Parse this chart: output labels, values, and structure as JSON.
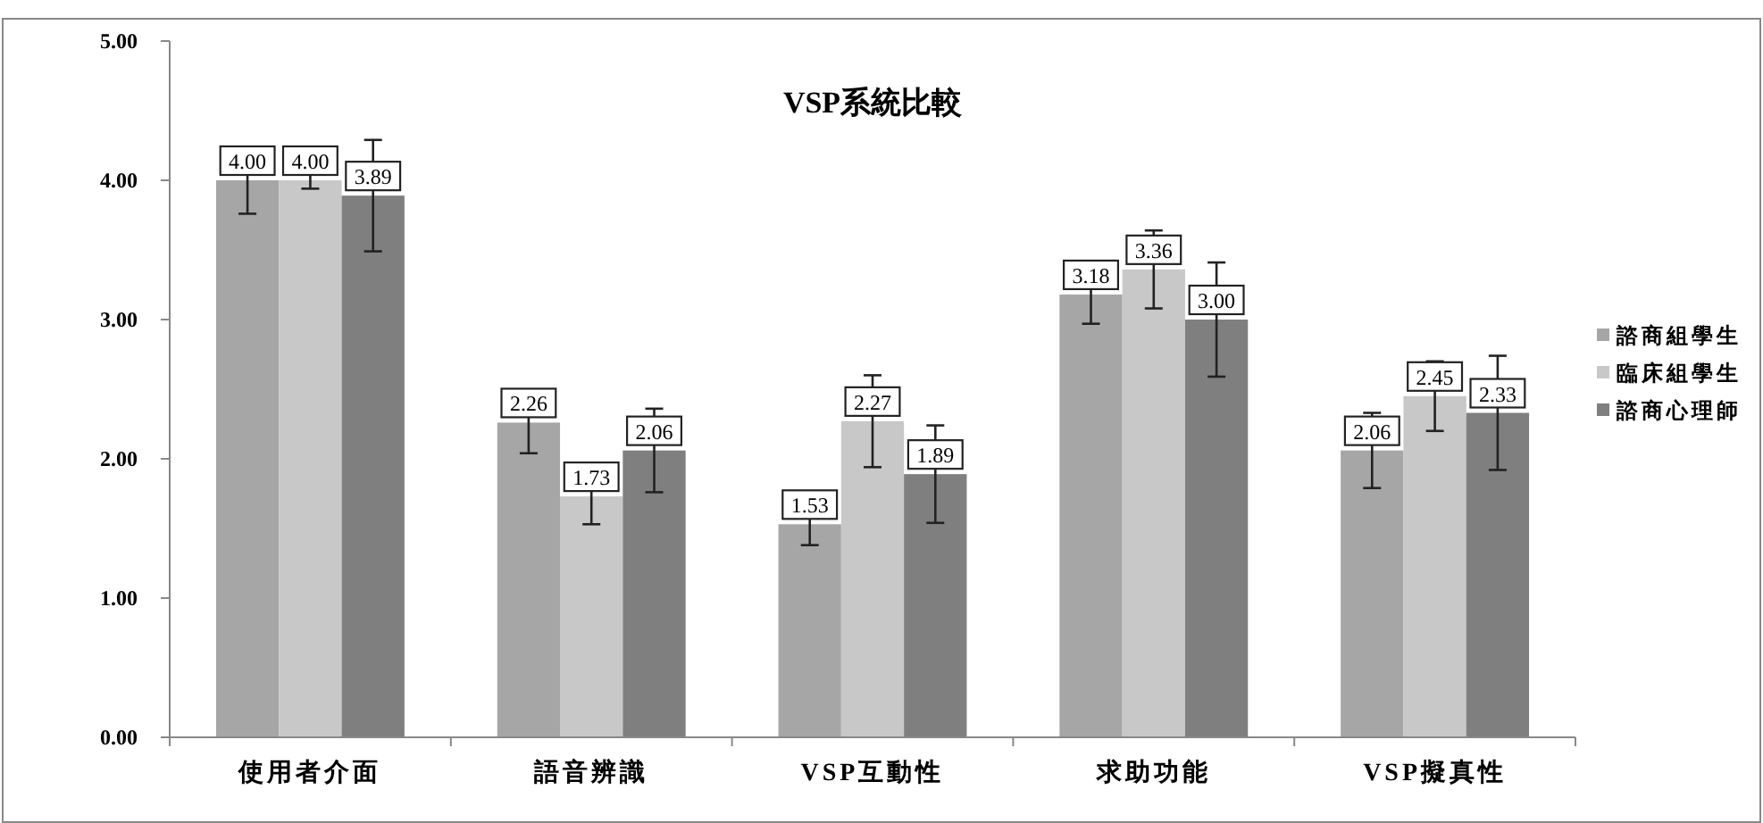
{
  "chart_data": {
    "type": "bar",
    "title": "VSP系統比較",
    "categories": [
      "使用者介面",
      "語音辨識",
      "VSP互動性",
      "求助功能",
      "VSP擬真性"
    ],
    "series": [
      {
        "name": "諮商組學生",
        "color": "#a6a6a6",
        "values": [
          4.0,
          2.26,
          1.53,
          3.18,
          2.06
        ],
        "value_labels": [
          "4.00",
          "2.26",
          "1.53",
          "3.18",
          "2.06"
        ],
        "errors": [
          0.24,
          0.22,
          0.15,
          0.21,
          0.27
        ]
      },
      {
        "name": "臨床組學生",
        "color": "#c8c8c8",
        "values": [
          4.0,
          1.73,
          2.27,
          3.36,
          2.45
        ],
        "value_labels": [
          "4.00",
          "1.73",
          "2.27",
          "3.36",
          "2.45"
        ],
        "errors": [
          0.06,
          0.2,
          0.33,
          0.28,
          0.25
        ]
      },
      {
        "name": "諮商心理師",
        "color": "#7f7f7f",
        "values": [
          3.89,
          2.06,
          1.89,
          3.0,
          2.33
        ],
        "value_labels": [
          "3.89",
          "2.06",
          "1.89",
          "3.00",
          "2.33"
        ],
        "errors": [
          0.4,
          0.3,
          0.35,
          0.41,
          0.41
        ]
      }
    ],
    "ylim": [
      0,
      5
    ],
    "yticks": [
      {
        "value": 0,
        "label": "0.00"
      },
      {
        "value": 1,
        "label": "1.00"
      },
      {
        "value": 2,
        "label": "2.00"
      },
      {
        "value": 3,
        "label": "3.00"
      },
      {
        "value": 4,
        "label": "4.00"
      },
      {
        "value": 5,
        "label": "5.00"
      }
    ],
    "grid": false,
    "legend": "right"
  }
}
